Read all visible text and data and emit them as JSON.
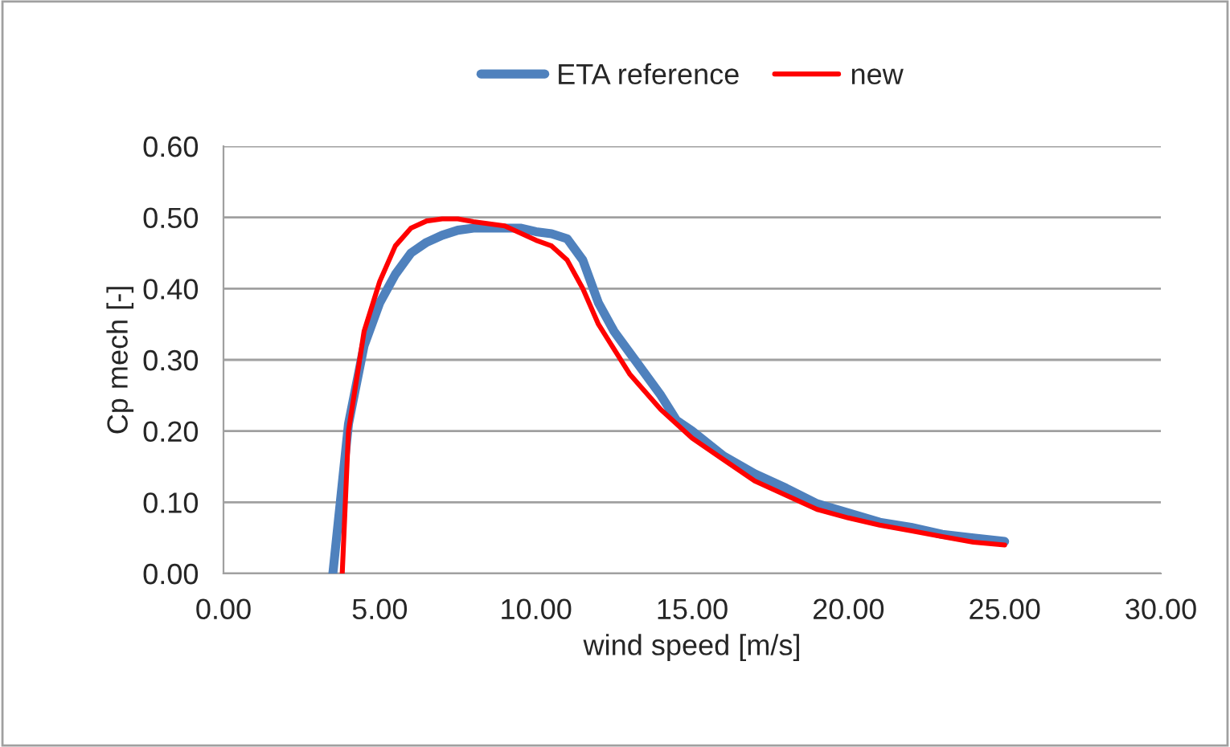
{
  "chart_data": {
    "type": "line",
    "xlabel": "wind speed [m/s]",
    "ylabel": "Cp mech [-]",
    "xlim": [
      0,
      30
    ],
    "ylim": [
      0,
      0.6
    ],
    "xticks": [
      {
        "value": 0,
        "label": "0.00"
      },
      {
        "value": 5,
        "label": "5.00"
      },
      {
        "value": 10,
        "label": "10.00"
      },
      {
        "value": 15,
        "label": "15.00"
      },
      {
        "value": 20,
        "label": "20.00"
      },
      {
        "value": 25,
        "label": "25.00"
      },
      {
        "value": 30,
        "label": "30.00"
      }
    ],
    "yticks": [
      {
        "value": 0,
        "label": "0.00"
      },
      {
        "value": 0.1,
        "label": "0.10"
      },
      {
        "value": 0.2,
        "label": "0.20"
      },
      {
        "value": 0.3,
        "label": "0.30"
      },
      {
        "value": 0.4,
        "label": "0.40"
      },
      {
        "value": 0.5,
        "label": "0.50"
      },
      {
        "value": 0.6,
        "label": "0.60"
      }
    ],
    "grid": "y",
    "legend": "top",
    "marker": "none",
    "line_style": "solid",
    "series": [
      {
        "name": "ETA reference",
        "color": "#4f81bd",
        "x": [
          3.5,
          4,
          4.5,
          5,
          5.5,
          6,
          6.5,
          7,
          7.5,
          8,
          9,
          9.5,
          10,
          10.5,
          11,
          11.5,
          12,
          12.5,
          13,
          14,
          14.5,
          15,
          16,
          17,
          18,
          19,
          20,
          21,
          22,
          23,
          24,
          25
        ],
        "values": [
          0,
          0.21,
          0.32,
          0.38,
          0.42,
          0.45,
          0.465,
          0.475,
          0.482,
          0.485,
          0.485,
          0.485,
          0.48,
          0.477,
          0.47,
          0.44,
          0.38,
          0.34,
          0.31,
          0.25,
          0.215,
          0.2,
          0.165,
          0.14,
          0.12,
          0.098,
          0.085,
          0.072,
          0.065,
          0.055,
          0.05,
          0.045
        ]
      },
      {
        "name": "new",
        "color": "#ff0000",
        "x": [
          3.8,
          4,
          4.5,
          5,
          5.5,
          6,
          6.5,
          7,
          7.5,
          8,
          9,
          10,
          10.5,
          11,
          11.5,
          12,
          13,
          14,
          15,
          16,
          17,
          18,
          19,
          20,
          21,
          22,
          23,
          24,
          25
        ],
        "values": [
          0,
          0.2,
          0.34,
          0.41,
          0.46,
          0.485,
          0.495,
          0.498,
          0.498,
          0.494,
          0.488,
          0.468,
          0.46,
          0.44,
          0.4,
          0.35,
          0.28,
          0.23,
          0.19,
          0.16,
          0.13,
          0.11,
          0.09,
          0.078,
          0.068,
          0.06,
          0.052,
          0.044,
          0.04
        ]
      }
    ]
  }
}
